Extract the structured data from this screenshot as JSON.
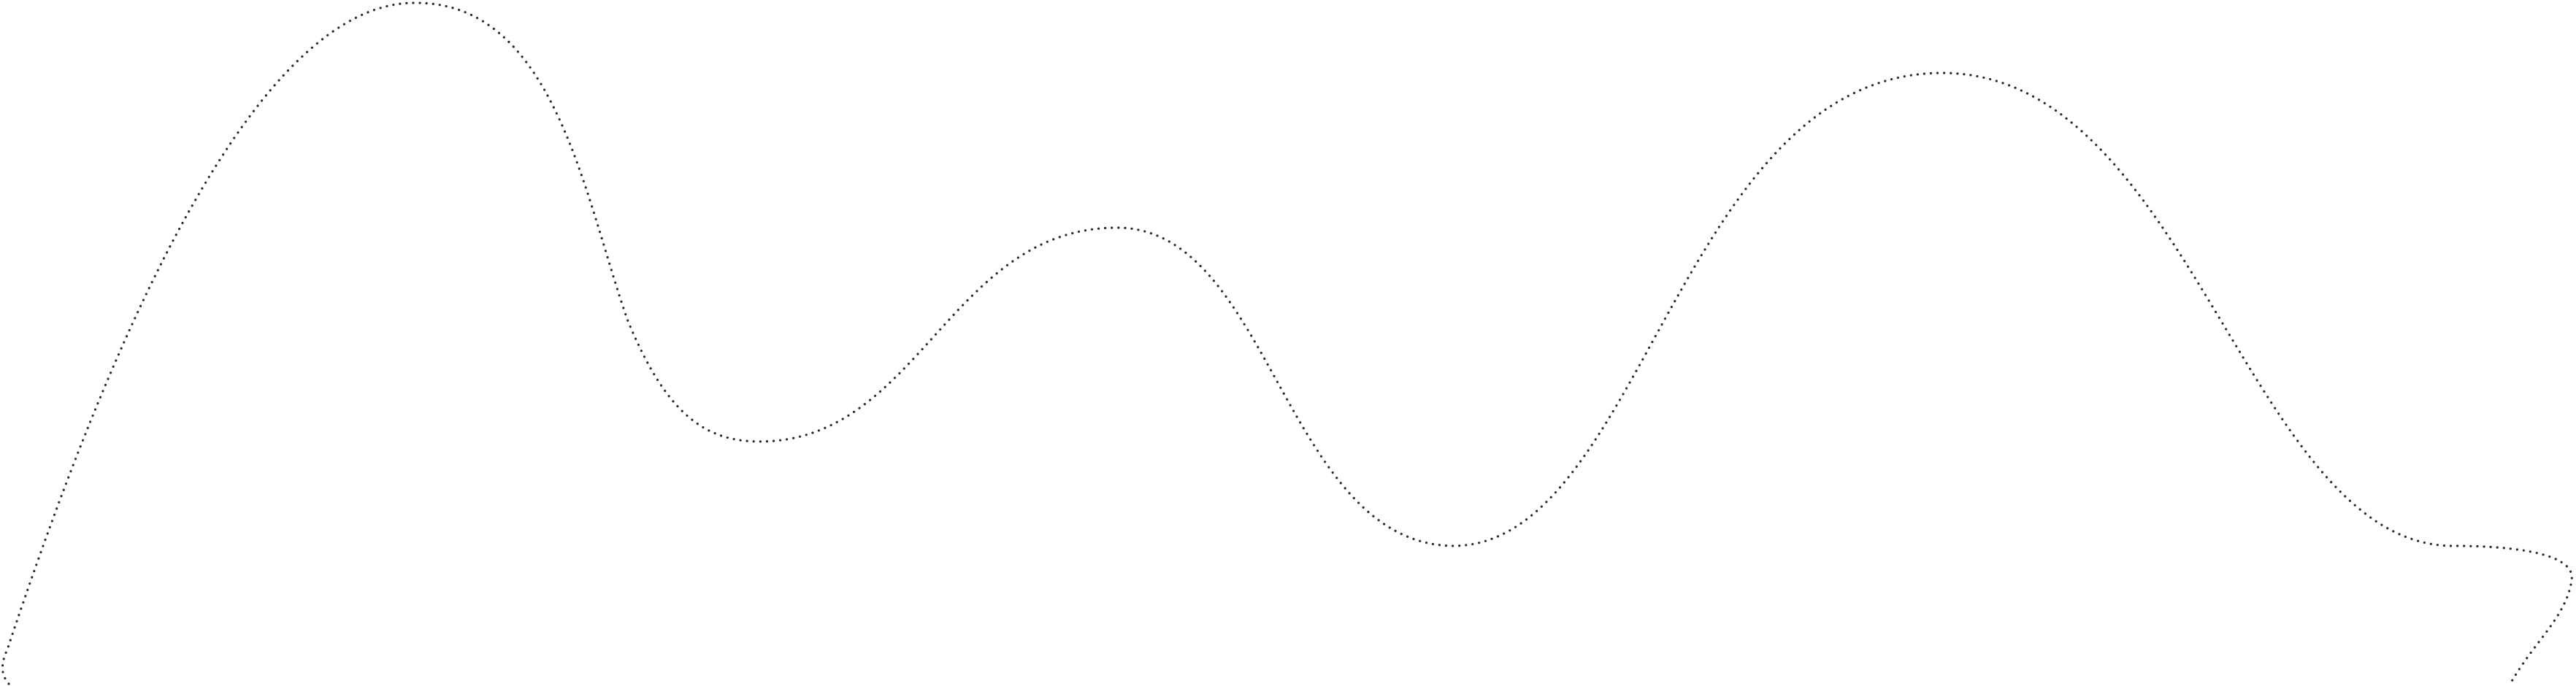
{
  "canvas": {
    "background": "#ffffff"
  },
  "decoration": {
    "name": "dotted-wave-line",
    "stroke_color": "#2b2b2b",
    "line_style": "dotted"
  }
}
